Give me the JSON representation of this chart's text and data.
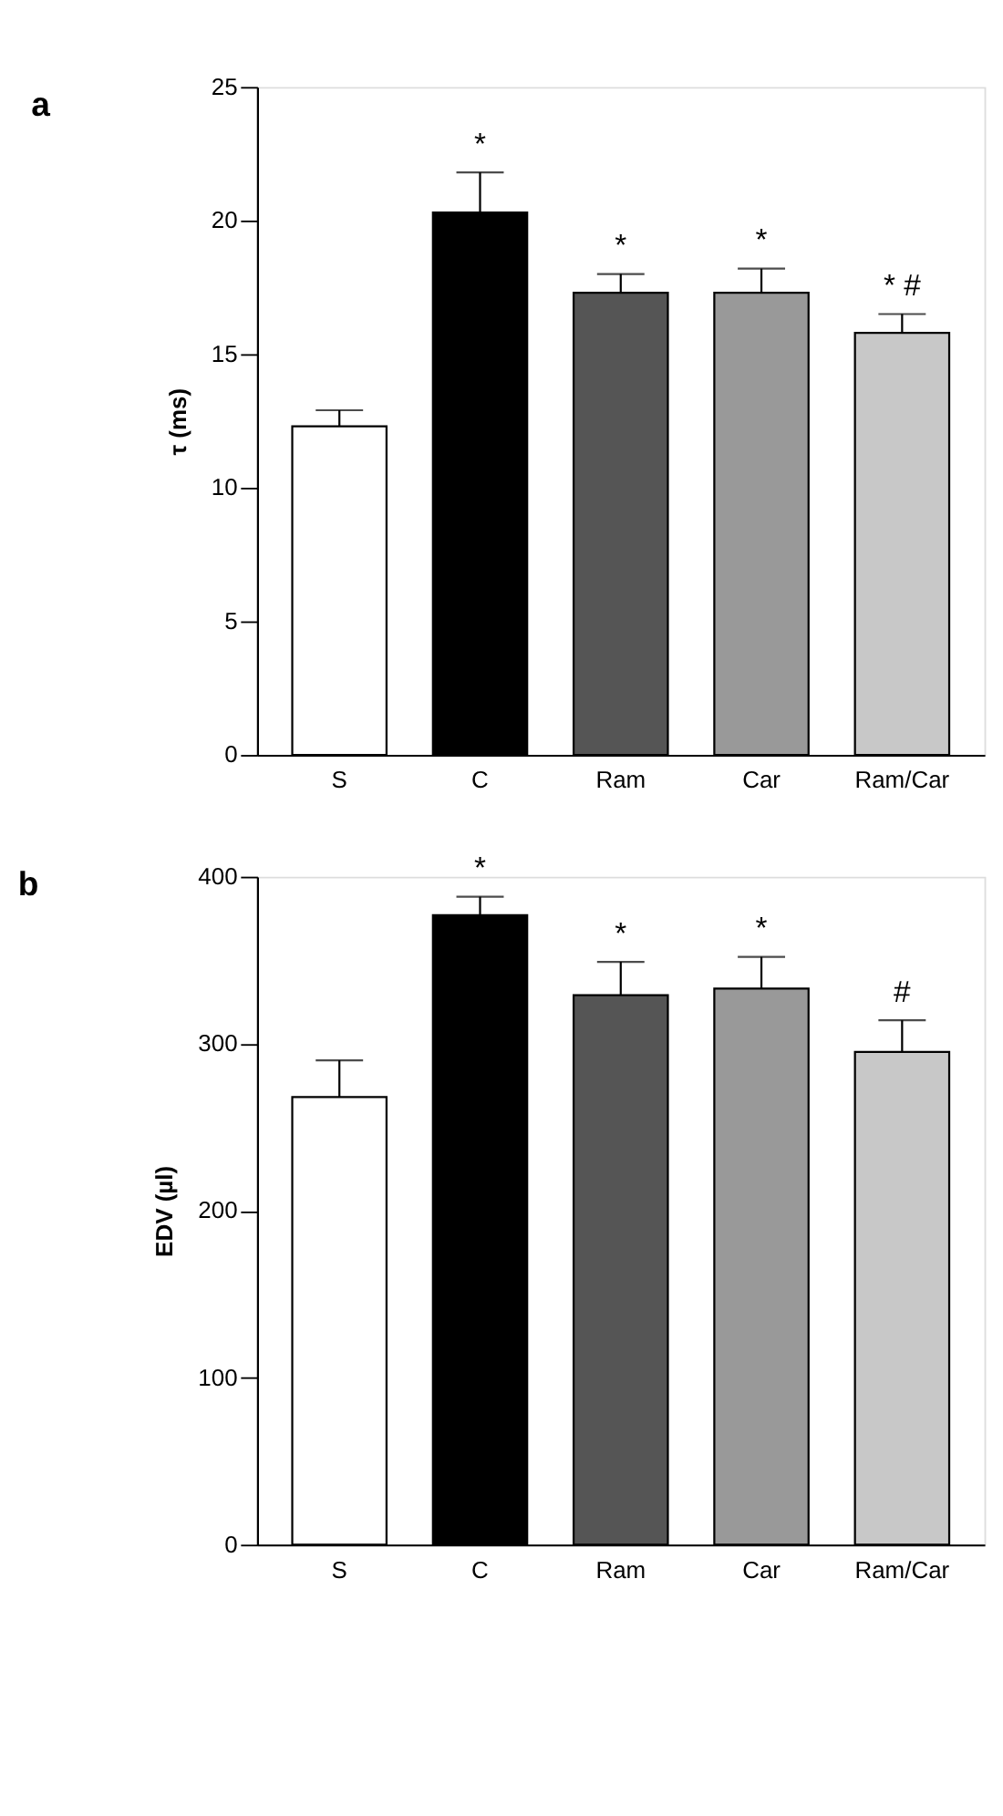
{
  "chart_data": [
    {
      "type": "bar",
      "title": "a",
      "ylabel": "τ (ms)",
      "categories": [
        "S",
        "C",
        "Ram",
        "Car",
        "Ram/Car"
      ],
      "values": [
        12.3,
        20.3,
        17.3,
        17.3,
        15.8
      ],
      "errors": [
        0.6,
        1.5,
        0.7,
        0.9,
        0.7
      ],
      "colors": [
        "#ffffff",
        "#000000",
        "#555555",
        "#999999",
        "#c8c8c8"
      ],
      "ylim": [
        0,
        25
      ],
      "yticks": [
        0,
        5,
        10,
        15,
        20,
        25
      ],
      "grid": false,
      "legend": false,
      "annotations": [
        {
          "text": "*",
          "x": "C",
          "y": 21.8
        },
        {
          "text": "*",
          "x": "Ram",
          "y": 18.0
        },
        {
          "text": "*",
          "x": "Car",
          "y": 18.2
        },
        {
          "text": "* #",
          "x": "Ram/Car",
          "y": 16.5
        }
      ]
    },
    {
      "type": "bar",
      "title": "b",
      "ylabel": "EDV (µl)",
      "categories": [
        "S",
        "C",
        "Ram",
        "Car",
        "Ram/Car"
      ],
      "values": [
        268,
        377,
        329,
        333,
        295
      ],
      "errors": [
        22,
        11,
        20,
        19,
        19
      ],
      "colors": [
        "#ffffff",
        "#000000",
        "#555555",
        "#999999",
        "#c8c8c8"
      ],
      "ylim": [
        0,
        400
      ],
      "yticks": [
        0,
        100,
        200,
        300,
        400
      ],
      "grid": false,
      "legend": false,
      "annotations": [
        {
          "text": "*",
          "x": "C",
          "y": 388
        },
        {
          "text": "*",
          "x": "Ram",
          "y": 349
        },
        {
          "text": "*",
          "x": "Car",
          "y": 352
        },
        {
          "text": "#",
          "x": "Ram/Car",
          "y": 314
        }
      ]
    }
  ]
}
